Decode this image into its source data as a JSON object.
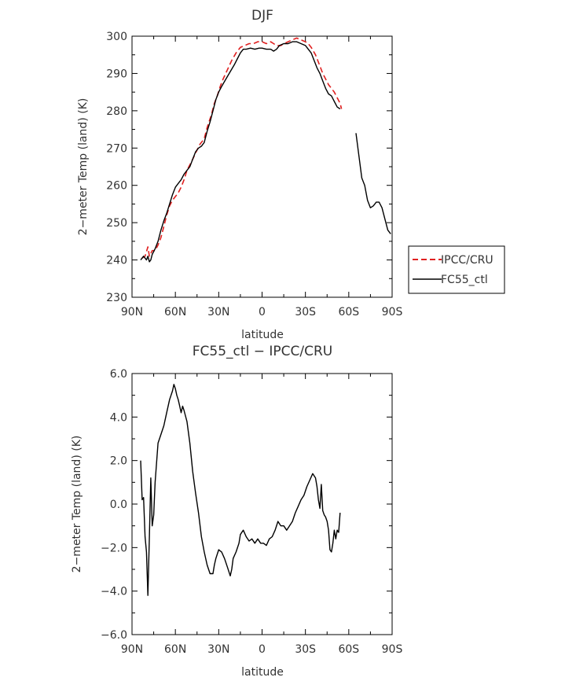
{
  "chart_data": [
    {
      "type": "line",
      "title": "DJF",
      "xlabel": "latitude",
      "ylabel": "2−meter Temp (land) (K)",
      "xlim": [
        90,
        -90
      ],
      "ylim": [
        230,
        300
      ],
      "xticks": [
        90,
        60,
        30,
        0,
        -30,
        -60,
        -90
      ],
      "xtick_labels": [
        "90N",
        "60N",
        "30N",
        "0",
        "30S",
        "60S",
        "90S"
      ],
      "yticks": [
        230,
        240,
        250,
        260,
        270,
        280,
        290,
        300
      ],
      "ytick_labels": [
        "230",
        "240",
        "250",
        "260",
        "270",
        "280",
        "290",
        "300"
      ],
      "grid": false,
      "legend_position": "right",
      "series": [
        {
          "name": "IPCC/CRU",
          "color": "#e02020",
          "dash": "dashed",
          "segments": [
            [
              [
                83,
                240.5
              ],
              [
                81,
                241
              ],
              [
                79,
                243.5
              ],
              [
                78,
                241
              ],
              [
                76,
                242.5
              ],
              [
                74,
                242.5
              ],
              [
                72,
                244
              ],
              [
                70,
                246
              ],
              [
                68,
                249
              ],
              [
                66,
                252
              ],
              [
                64,
                254.5
              ],
              [
                62,
                256
              ],
              [
                60,
                257
              ],
              [
                58,
                258
              ],
              [
                56,
                259.5
              ],
              [
                54,
                261.5
              ],
              [
                52,
                264
              ],
              [
                50,
                265.5
              ],
              [
                48,
                267
              ],
              [
                45,
                269.5
              ],
              [
                43,
                271
              ],
              [
                40,
                272.5
              ],
              [
                38,
                275.5
              ],
              [
                35,
                279
              ],
              [
                33,
                282
              ],
              [
                31,
                284
              ],
              [
                29,
                286.5
              ],
              [
                27,
                288.5
              ],
              [
                24,
                291
              ],
              [
                21,
                293.5
              ],
              [
                18,
                295.5
              ],
              [
                15,
                297
              ],
              [
                12,
                297.5
              ],
              [
                9,
                298
              ],
              [
                6,
                298
              ],
              [
                3,
                298.5
              ],
              [
                0,
                298.5
              ],
              [
                -3,
                298
              ],
              [
                -6,
                298.5
              ],
              [
                -8,
                298
              ],
              [
                -10,
                297.5
              ],
              [
                -13,
                297.5
              ],
              [
                -15,
                298
              ],
              [
                -18,
                298.5
              ],
              [
                -21,
                299
              ],
              [
                -24,
                299.5
              ],
              [
                -27,
                299
              ],
              [
                -30,
                298.5
              ],
              [
                -32,
                298
              ],
              [
                -34,
                297
              ],
              [
                -37,
                295
              ],
              [
                -40,
                292
              ],
              [
                -42,
                290
              ],
              [
                -44,
                288.5
              ],
              [
                -46,
                287
              ],
              [
                -48,
                286
              ],
              [
                -50,
                285
              ],
              [
                -52,
                283.5
              ],
              [
                -54,
                282
              ],
              [
                -55,
                280.5
              ]
            ]
          ]
        },
        {
          "name": "FC55_ctl",
          "color": "#000000",
          "dash": "solid",
          "segments": [
            [
              [
                84,
                240
              ],
              [
                82,
                241
              ],
              [
                80,
                240
              ],
              [
                79,
                241
              ],
              [
                78,
                239.5
              ],
              [
                77,
                240
              ],
              [
                76,
                241.5
              ],
              [
                74,
                243
              ],
              [
                72,
                245
              ],
              [
                70,
                248
              ],
              [
                68,
                250.5
              ],
              [
                66,
                252.5
              ],
              [
                64,
                255
              ],
              [
                62,
                257.5
              ],
              [
                60,
                259.5
              ],
              [
                58,
                260.5
              ],
              [
                56,
                261.5
              ],
              [
                54,
                263
              ],
              [
                52,
                264
              ],
              [
                50,
                265
              ],
              [
                48,
                267
              ],
              [
                46,
                269
              ],
              [
                44,
                270
              ],
              [
                42,
                270.5
              ],
              [
                40,
                271.5
              ],
              [
                38,
                274.5
              ],
              [
                36,
                277
              ],
              [
                34,
                280
              ],
              [
                32,
                283
              ],
              [
                30,
                285
              ],
              [
                28,
                286.5
              ],
              [
                25,
                288.5
              ],
              [
                22,
                290.5
              ],
              [
                19,
                292.5
              ],
              [
                17,
                294
              ],
              [
                15,
                295.5
              ],
              [
                13,
                296.5
              ],
              [
                11,
                296.5
              ],
              [
                8,
                296.8
              ],
              [
                5,
                296.5
              ],
              [
                2,
                296.8
              ],
              [
                0,
                296.8
              ],
              [
                -3,
                296.5
              ],
              [
                -6,
                296.5
              ],
              [
                -8,
                296
              ],
              [
                -10,
                296.5
              ],
              [
                -12,
                297.5
              ],
              [
                -15,
                298
              ],
              [
                -18,
                298
              ],
              [
                -21,
                298.5
              ],
              [
                -24,
                298.5
              ],
              [
                -27,
                298
              ],
              [
                -30,
                297.5
              ],
              [
                -32,
                296.5
              ],
              [
                -34,
                295.5
              ],
              [
                -36,
                293.5
              ],
              [
                -38,
                291.5
              ],
              [
                -40,
                290
              ],
              [
                -42,
                288
              ],
              [
                -44,
                286
              ],
              [
                -46,
                284.5
              ],
              [
                -48,
                284
              ],
              [
                -50,
                282.5
              ],
              [
                -52,
                281
              ],
              [
                -54,
                280.5
              ]
            ],
            [
              [
                -65,
                274
              ],
              [
                -67,
                268
              ],
              [
                -69,
                262
              ],
              [
                -71,
                260
              ],
              [
                -73,
                256
              ],
              [
                -75,
                254
              ],
              [
                -77,
                254.5
              ],
              [
                -79,
                255.5
              ],
              [
                -81,
                255.5
              ],
              [
                -83,
                254
              ],
              [
                -85,
                251
              ],
              [
                -87,
                248
              ],
              [
                -89,
                247
              ]
            ]
          ]
        }
      ]
    },
    {
      "type": "line",
      "title": "FC55_ctl − IPCC/CRU",
      "xlabel": "latitude",
      "ylabel": "2−meter Temp (land) (K)",
      "xlim": [
        90,
        -90
      ],
      "ylim": [
        -6,
        6
      ],
      "xticks": [
        90,
        60,
        30,
        0,
        -30,
        -60,
        -90
      ],
      "xtick_labels": [
        "90N",
        "60N",
        "30N",
        "0",
        "30S",
        "60S",
        "90S"
      ],
      "yticks": [
        -6,
        -4,
        -2,
        0,
        2,
        4,
        6
      ],
      "ytick_labels": [
        "−6.0",
        "−4.0",
        "−2.0",
        "0.0",
        "2.0",
        "4.0",
        "6.0"
      ],
      "grid": false,
      "series": [
        {
          "color": "#000000",
          "dash": "solid",
          "segments": [
            [
              [
                84,
                2
              ],
              [
                83,
                0.2
              ],
              [
                82,
                0.3
              ],
              [
                81,
                -1.5
              ],
              [
                80,
                -2.2
              ],
              [
                79,
                -4.2
              ],
              [
                78,
                -1.5
              ],
              [
                77,
                1.2
              ],
              [
                76,
                -1
              ],
              [
                75,
                -0.5
              ],
              [
                74,
                1
              ],
              [
                72,
                2.8
              ],
              [
                70,
                3.2
              ],
              [
                68,
                3.6
              ],
              [
                66,
                4.2
              ],
              [
                64,
                4.8
              ],
              [
                62,
                5.2
              ],
              [
                61,
                5.5
              ],
              [
                60,
                5.3
              ],
              [
                59,
                5.0
              ],
              [
                58,
                4.8
              ],
              [
                57,
                4.5
              ],
              [
                56,
                4.2
              ],
              [
                55,
                4.5
              ],
              [
                54,
                4.3
              ],
              [
                52,
                3.8
              ],
              [
                50,
                2.8
              ],
              [
                48,
                1.5
              ],
              [
                46,
                0.5
              ],
              [
                44,
                -0.4
              ],
              [
                42,
                -1.5
              ],
              [
                40,
                -2.2
              ],
              [
                38,
                -2.8
              ],
              [
                36,
                -3.2
              ],
              [
                34,
                -3.2
              ],
              [
                33,
                -2.8
              ],
              [
                32,
                -2.5
              ],
              [
                30,
                -2.1
              ],
              [
                28,
                -2.2
              ],
              [
                26,
                -2.5
              ],
              [
                24,
                -2.9
              ],
              [
                22,
                -3.3
              ],
              [
                21,
                -3.0
              ],
              [
                20,
                -2.5
              ],
              [
                18,
                -2.2
              ],
              [
                16,
                -1.8
              ],
              [
                15,
                -1.4
              ],
              [
                13,
                -1.2
              ],
              [
                11,
                -1.5
              ],
              [
                9,
                -1.7
              ],
              [
                7,
                -1.6
              ],
              [
                5,
                -1.8
              ],
              [
                3,
                -1.6
              ],
              [
                1,
                -1.8
              ],
              [
                -1,
                -1.8
              ],
              [
                -3,
                -1.9
              ],
              [
                -5,
                -1.6
              ],
              [
                -7,
                -1.5
              ],
              [
                -9,
                -1.2
              ],
              [
                -11,
                -0.8
              ],
              [
                -13,
                -1.0
              ],
              [
                -15,
                -1.0
              ],
              [
                -17,
                -1.2
              ],
              [
                -19,
                -1.0
              ],
              [
                -21,
                -0.8
              ],
              [
                -23,
                -0.4
              ],
              [
                -25,
                -0.1
              ],
              [
                -27,
                0.2
              ],
              [
                -29,
                0.4
              ],
              [
                -31,
                0.8
              ],
              [
                -33,
                1.1
              ],
              [
                -35,
                1.4
              ],
              [
                -37,
                1.2
              ],
              [
                -38,
                0.8
              ],
              [
                -39,
                0.2
              ],
              [
                -40,
                -0.2
              ],
              [
                -41,
                0.9
              ],
              [
                -42,
                -0.3
              ],
              [
                -43,
                -0.5
              ],
              [
                -44,
                -0.6
              ],
              [
                -45,
                -0.8
              ],
              [
                -46,
                -1.2
              ],
              [
                -47,
                -2.1
              ],
              [
                -48,
                -2.2
              ],
              [
                -49,
                -1.8
              ],
              [
                -50,
                -1.2
              ],
              [
                -51,
                -1.6
              ],
              [
                -52,
                -1.2
              ],
              [
                -53,
                -1.3
              ],
              [
                -54,
                -0.4
              ]
            ]
          ]
        }
      ]
    }
  ]
}
